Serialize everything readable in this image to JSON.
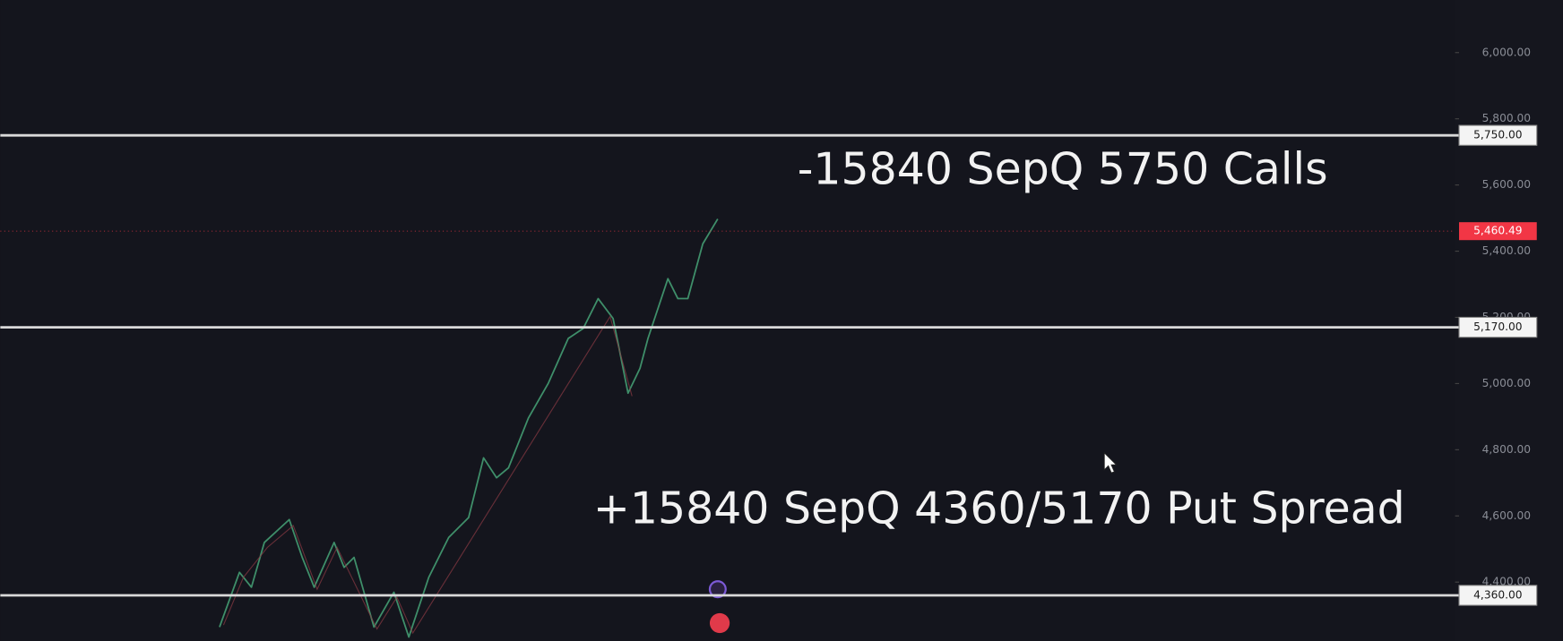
{
  "chart_data": {
    "type": "level-chart",
    "ylim": [
      4222,
      6159
    ],
    "yticks": [
      {
        "value": 6000,
        "label": "6,000.00"
      },
      {
        "value": 5800,
        "label": "5,800.00"
      },
      {
        "value": 5600,
        "label": "5,600.00"
      },
      {
        "value": 5400,
        "label": "5,400.00"
      },
      {
        "value": 5200,
        "label": "5,200.00"
      },
      {
        "value": 5000,
        "label": "5,000.00"
      },
      {
        "value": 4800,
        "label": "4,800.00"
      },
      {
        "value": 4600,
        "label": "4,600.00"
      },
      {
        "value": 4400,
        "label": "4,400.00"
      }
    ],
    "levels": [
      {
        "value": 5750,
        "label": "5,750.00"
      },
      {
        "value": 5170,
        "label": "5,170.00"
      },
      {
        "value": 4360,
        "label": "4,360.00"
      }
    ],
    "level_color": "#d9d9d9",
    "last_price": {
      "value": 5460.49,
      "label": "5,460.49"
    },
    "last_price_color": "#f23645",
    "annotations": [
      {
        "text": "-15840 SepQ 5750 Calls",
        "value": 5640
      },
      {
        "text": "+15840 SepQ 4360/5170 Put Spread",
        "value": 4614
      }
    ]
  }
}
